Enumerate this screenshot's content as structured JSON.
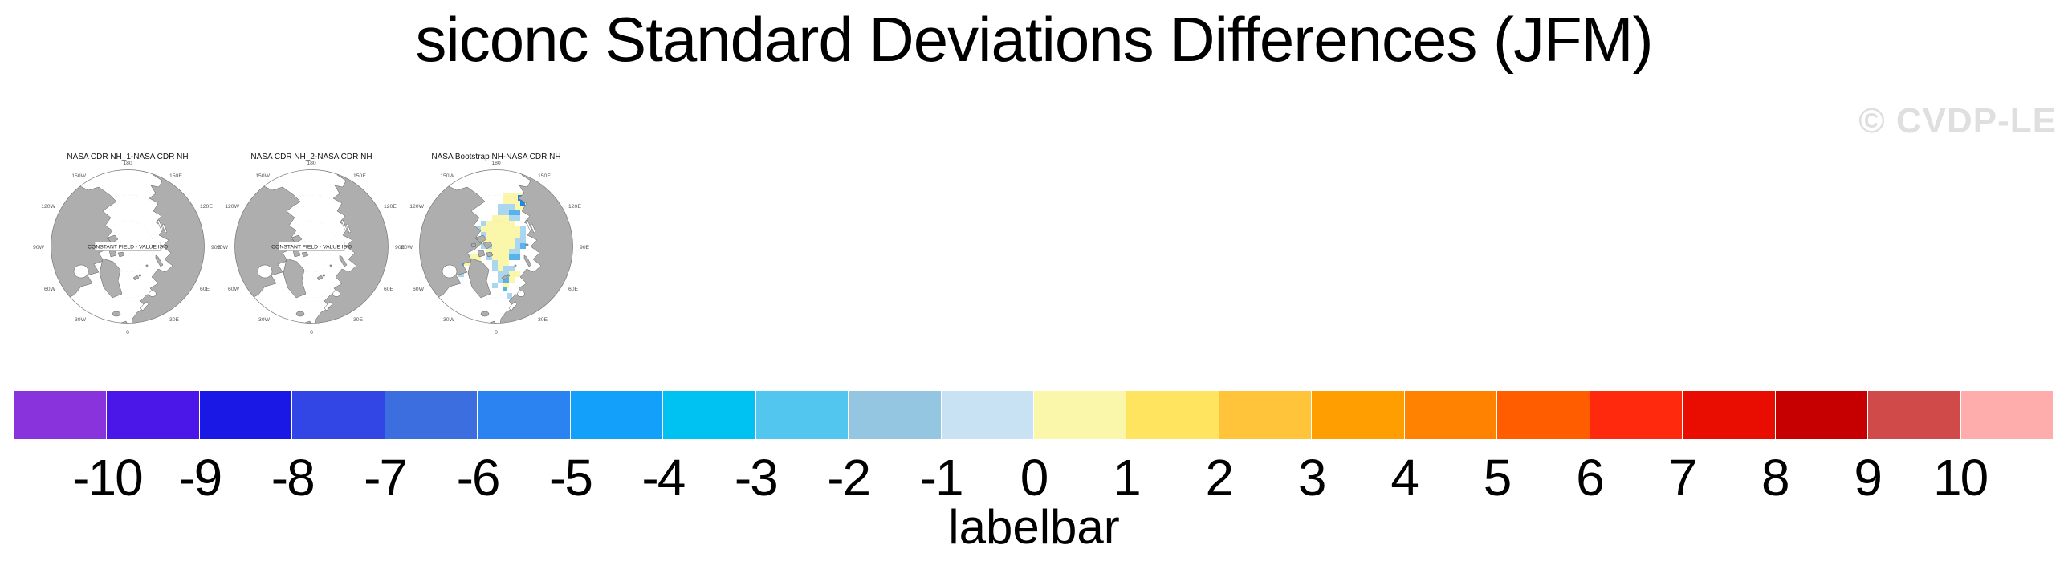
{
  "title": "siconc Standard Deviations Differences (JFM)",
  "watermark": "© CVDP-LE",
  "panels": [
    {
      "title": "NASA CDR NH_1-NASA CDR NH",
      "center_label": "CONSTANT FIELD - VALUE IS 0"
    },
    {
      "title": "NASA CDR NH_2-NASA CDR NH",
      "center_label": "CONSTANT FIELD - VALUE IS 0"
    },
    {
      "title": "NASA Bootstrap NH-NASA CDR NH",
      "center_label": ""
    }
  ],
  "lon_labels": [
    "180",
    "150W",
    "150E",
    "120W",
    "120E",
    "90W",
    "90E",
    "60W",
    "60E",
    "30W",
    "30E",
    "0"
  ],
  "chart_data": {
    "type": "heatmap",
    "title": "siconc Standard Deviations Differences (JFM)",
    "panels": [
      {
        "title": "NASA CDR NH_1-NASA CDR NH",
        "projection": "north polar stereographic",
        "data_summary": "CONSTANT FIELD - VALUE IS 0 (difference field is zero everywhere; blank white map)"
      },
      {
        "title": "NASA CDR NH_2-NASA CDR NH",
        "projection": "north polar stereographic",
        "data_summary": "CONSTANT FIELD - VALUE IS 0 (difference field is zero everywhere; blank white map)"
      },
      {
        "title": "NASA Bootstrap NH-NASA CDR NH",
        "projection": "north polar stereographic",
        "data_summary": "small differences over the Arctic sea-ice zone: mostly 0 to +1 (pale yellow) with scattered -1 to -3 (light/medium blue) cells and a few -4 to -5 (darker blue) cells near the East Siberian coast"
      }
    ],
    "colorbar": {
      "caption": "labelbar",
      "tick_labels": [
        "-10",
        "-9",
        "-8",
        "-7",
        "-6",
        "-5",
        "-4",
        "-3",
        "-2",
        "-1",
        "0",
        "1",
        "2",
        "3",
        "4",
        "5",
        "6",
        "7",
        "8",
        "9",
        "10"
      ],
      "colors": [
        "#8833DB",
        "#4B16E8",
        "#1A18E4",
        "#3146E4",
        "#3D6EE0",
        "#2B83F2",
        "#12A0FA",
        "#00C2F2",
        "#52C6EF",
        "#94C6E1",
        "#C8E2F4",
        "#FAF7AB",
        "#FFE45F",
        "#FFC43A",
        "#FF9E00",
        "#FF8300",
        "#FF5D00",
        "#FF2A0E",
        "#E90C00",
        "#C60000",
        "#D04A4A",
        "#FFACAC"
      ],
      "range": [
        -10,
        10
      ],
      "legend_position": "bottom"
    }
  },
  "colors": {
    "land": "#AEAEAE",
    "coastline": "#5A5A5A",
    "watermark_gray": "#DFDFDF",
    "patch_pale_yellow": "#FAF7AB",
    "patch_light_blue": "#ABD6EF",
    "patch_medium_blue": "#58B2EC",
    "patch_dark_blue": "#1E88E8"
  }
}
